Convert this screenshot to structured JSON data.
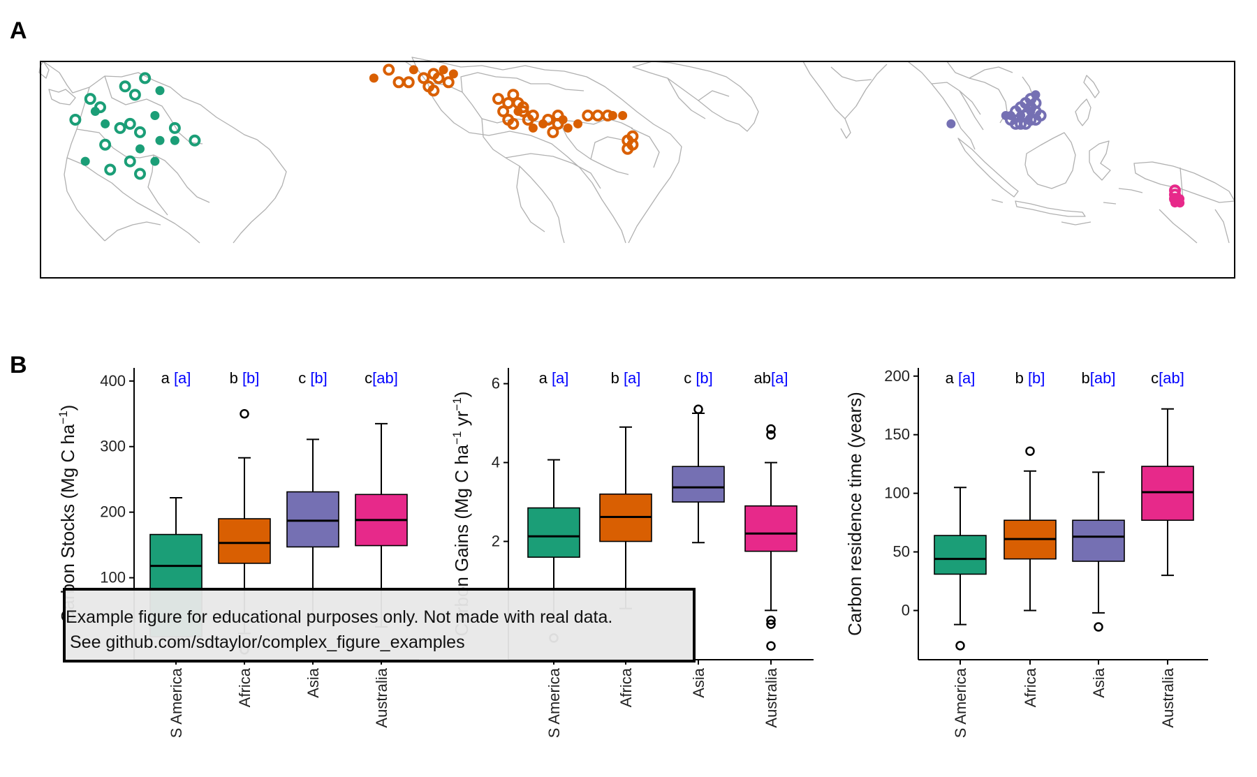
{
  "figure": {
    "panel_a_label": "A",
    "panel_b_label": "B"
  },
  "colors": {
    "S America": "#1b9e77",
    "Africa": "#d95f02",
    "Asia": "#7570b3",
    "Australia": "#e7298a",
    "letters_black": "#000000",
    "letters_blue": "#0000ff",
    "map_lines": "#b0b0b0"
  },
  "note": {
    "line1": "Example figure for educational purposes only. Not made with real data.",
    "line2": "See github.com/sdtaylor/complex_figure_examples"
  },
  "chart_data": [
    {
      "type": "scatter",
      "panel": "A",
      "description_free": true,
      "x_unit": "longitude",
      "y_unit": "latitude",
      "xlim": [
        -82,
        158
      ],
      "ylim": [
        -38,
        14
      ],
      "series": [
        {
          "group": "S America",
          "marker": "ring",
          "points": [
            [
              -61,
              10
            ],
            [
              -65,
              8
            ],
            [
              -63,
              6
            ],
            [
              -72,
              5
            ],
            [
              -70,
              3
            ],
            [
              -75,
              0
            ],
            [
              -64,
              -1
            ],
            [
              -66,
              -2
            ],
            [
              -55,
              -2
            ],
            [
              -51,
              -5
            ],
            [
              -62,
              -3
            ],
            [
              -69,
              -6
            ],
            [
              -64,
              -10
            ],
            [
              -68,
              -12
            ],
            [
              -62,
              -13
            ]
          ]
        },
        {
          "group": "S America",
          "marker": "dot",
          "points": [
            [
              -58,
              7
            ],
            [
              -71,
              2
            ],
            [
              -69,
              -1
            ],
            [
              -59,
              1
            ],
            [
              -58,
              -5
            ],
            [
              -73,
              -10
            ],
            [
              -62,
              -7
            ],
            [
              -59,
              -10
            ],
            [
              -55,
              -5
            ]
          ]
        },
        {
          "group": "Africa",
          "marker": "ring",
          "points": [
            [
              -12,
              12
            ],
            [
              -10,
              9
            ],
            [
              -8,
              9
            ],
            [
              -5,
              10
            ],
            [
              -3,
              11
            ],
            [
              -4,
              8
            ],
            [
              -3,
              7
            ],
            [
              -2,
              10
            ],
            [
              0,
              9
            ],
            [
              10,
              5
            ],
            [
              12,
              4
            ],
            [
              13,
              6
            ],
            [
              14,
              4
            ],
            [
              11,
              2
            ],
            [
              12,
              0
            ],
            [
              13,
              -1
            ],
            [
              15,
              2
            ],
            [
              17,
              1
            ],
            [
              20,
              0
            ],
            [
              22,
              1
            ],
            [
              22,
              -1
            ],
            [
              28,
              1
            ],
            [
              30,
              1
            ],
            [
              32,
              1
            ],
            [
              37,
              -4
            ],
            [
              36,
              -5
            ],
            [
              37,
              -6
            ],
            [
              36,
              -7
            ],
            [
              15,
              3
            ],
            [
              16,
              0
            ],
            [
              21,
              -3
            ]
          ]
        },
        {
          "group": "Africa",
          "marker": "dot",
          "points": [
            [
              -15,
              10
            ],
            [
              -7,
              12
            ],
            [
              -1,
              12
            ],
            [
              1,
              11
            ],
            [
              14,
              2
            ],
            [
              17,
              -2
            ],
            [
              19,
              -1
            ],
            [
              23,
              0
            ],
            [
              24,
              -2
            ],
            [
              26,
              -1
            ],
            [
              33,
              1
            ],
            [
              35,
              1
            ]
          ]
        },
        {
          "group": "Asia",
          "marker": "ring",
          "points": [
            [
              114,
              2
            ],
            [
              115,
              3
            ],
            [
              116,
              4
            ],
            [
              117,
              5
            ],
            [
              117,
              3
            ],
            [
              118,
              4
            ],
            [
              118,
              2
            ],
            [
              116,
              1
            ],
            [
              115,
              -1
            ],
            [
              114,
              -1
            ],
            [
              117,
              0
            ],
            [
              118,
              0
            ],
            [
              119,
              1
            ],
            [
              116,
              -1
            ],
            [
              113,
              0
            ]
          ]
        },
        {
          "group": "Asia",
          "marker": "dot",
          "points": [
            [
              101,
              -1
            ],
            [
              112,
              1
            ],
            [
              113,
              1
            ],
            [
              115,
              1
            ],
            [
              117,
              2
            ],
            [
              118,
              6
            ]
          ]
        },
        {
          "group": "Australia",
          "marker": "ring",
          "points": [
            [
              146,
              -17
            ],
            [
              146,
              -18
            ],
            [
              146,
              -19
            ]
          ]
        },
        {
          "group": "Australia",
          "marker": "dot",
          "points": [
            [
              146,
              -19
            ],
            [
              147,
              -19
            ],
            [
              147,
              -20
            ],
            [
              146,
              -20
            ],
            [
              147,
              -20
            ]
          ]
        }
      ]
    },
    {
      "type": "box",
      "panel": "B1",
      "categories": [
        "S America",
        "Africa",
        "Asia",
        "Australia"
      ],
      "ylabel_parts": [
        "Carbon Stocks",
        "(Mg C ha",
        "−1",
        ")"
      ],
      "yticks": [
        100,
        200,
        300,
        400
      ],
      "ylim": [
        -25,
        420
      ],
      "letters_black": [
        "a",
        "b",
        "c",
        "c"
      ],
      "letters_blue": [
        "[a]",
        "[b]",
        "[b]",
        "[ab]"
      ],
      "boxes": [
        {
          "whisker_low": 0,
          "q1": 10,
          "median": 118,
          "q3": 166,
          "whisker_high": 222,
          "outliers": []
        },
        {
          "whisker_low": 15,
          "q1": 122,
          "median": 153,
          "q3": 190,
          "whisker_high": 283,
          "outliers": [
            350,
            -10
          ]
        },
        {
          "whisker_low": 40,
          "q1": 147,
          "median": 187,
          "q3": 231,
          "whisker_high": 311,
          "outliers": []
        },
        {
          "whisker_low": 25,
          "q1": 149,
          "median": 188,
          "q3": 227,
          "whisker_high": 335,
          "outliers": []
        }
      ]
    },
    {
      "type": "box",
      "panel": "B2",
      "categories": [
        "S America",
        "Africa",
        "Asia",
        "Australia"
      ],
      "ylabel_parts": [
        "Carbon Gains",
        "(Mg C ha",
        "−1",
        " yr",
        "−1",
        ")"
      ],
      "yticks": [
        2,
        4,
        6
      ],
      "ylim": [
        -1,
        6.4
      ],
      "letters_black": [
        "a",
        "b",
        "c",
        "ab"
      ],
      "letters_blue": [
        "[a]",
        "[a]",
        "[b]",
        "[a]"
      ],
      "boxes": [
        {
          "whisker_low": 0.0,
          "q1": 1.6,
          "median": 2.13,
          "q3": 2.85,
          "whisker_high": 4.07,
          "outliers": [
            -0.45
          ]
        },
        {
          "whisker_low": 0.3,
          "q1": 2.0,
          "median": 2.62,
          "q3": 3.2,
          "whisker_high": 4.9,
          "outliers": []
        },
        {
          "whisker_low": 1.97,
          "q1": 3.0,
          "median": 3.37,
          "q3": 3.9,
          "whisker_high": 5.25,
          "outliers": [
            5.35
          ]
        },
        {
          "whisker_low": 0.25,
          "q1": 1.75,
          "median": 2.2,
          "q3": 2.9,
          "whisker_high": 4.0,
          "outliers": [
            4.7,
            4.85,
            -0.1,
            0.0,
            -0.65
          ]
        }
      ]
    },
    {
      "type": "box",
      "panel": "B3",
      "categories": [
        "S America",
        "Africa",
        "Asia",
        "Australia"
      ],
      "ylabel_parts": [
        "Carbon residence time",
        "(years)"
      ],
      "yticks": [
        0,
        50,
        100,
        150,
        200
      ],
      "ylim": [
        -42,
        207
      ],
      "letters_black": [
        "a",
        "b",
        "b",
        "c"
      ],
      "letters_blue": [
        "[a]",
        "[b]",
        "[ab]",
        "[ab]"
      ],
      "boxes": [
        {
          "whisker_low": -12,
          "q1": 31,
          "median": 44,
          "q3": 64,
          "whisker_high": 105,
          "outliers": [
            -30
          ]
        },
        {
          "whisker_low": 0,
          "q1": 44,
          "median": 61,
          "q3": 77,
          "whisker_high": 119,
          "outliers": [
            136
          ]
        },
        {
          "whisker_low": -2,
          "q1": 42,
          "median": 63,
          "q3": 77,
          "whisker_high": 118,
          "outliers": [
            -14
          ]
        },
        {
          "whisker_low": 30,
          "q1": 77,
          "median": 101,
          "q3": 123,
          "whisker_high": 172,
          "outliers": []
        }
      ]
    }
  ]
}
